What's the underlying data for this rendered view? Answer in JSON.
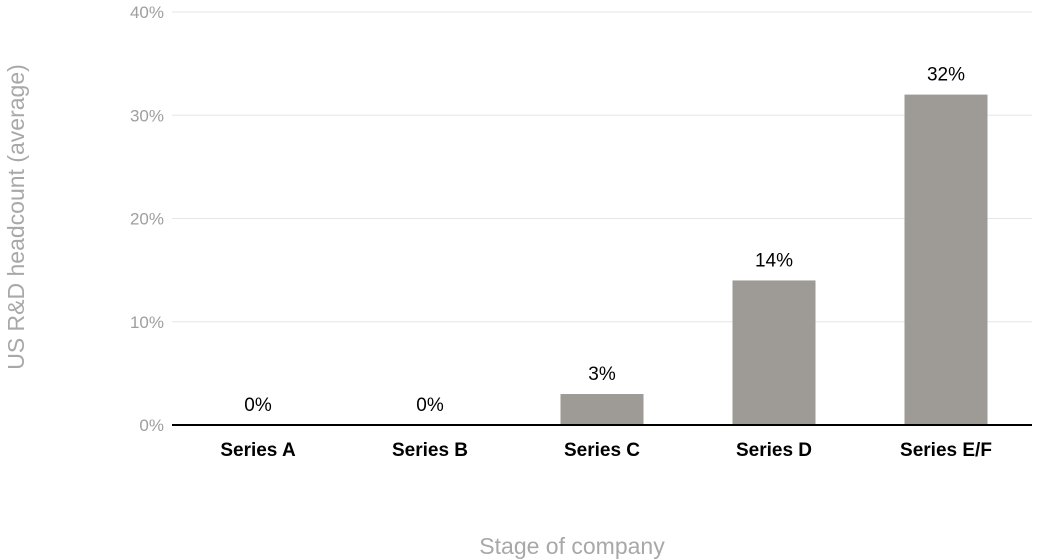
{
  "chart_data": {
    "type": "bar",
    "title": "",
    "xlabel": "Stage of company",
    "ylabel": "US R&D headcount (average)",
    "categories": [
      "Series A",
      "Series B",
      "Series C",
      "Series D",
      "Series E/F"
    ],
    "values": [
      0,
      0,
      3,
      14,
      32
    ],
    "data_labels": [
      "0%",
      "0%",
      "3%",
      "14%",
      "32%"
    ],
    "ylim": [
      0,
      40
    ],
    "yticks": [
      0,
      10,
      20,
      30,
      40
    ],
    "ytick_labels": [
      "0%",
      "10%",
      "20%",
      "30%",
      "40%"
    ],
    "grid": true,
    "legend": "none",
    "colors": {
      "bar": "#9e9a96",
      "grid": "#e6e6e6",
      "axis": "#000000",
      "tick_text": "#9e9e9e",
      "axis_title": "#a8a8a8"
    }
  }
}
